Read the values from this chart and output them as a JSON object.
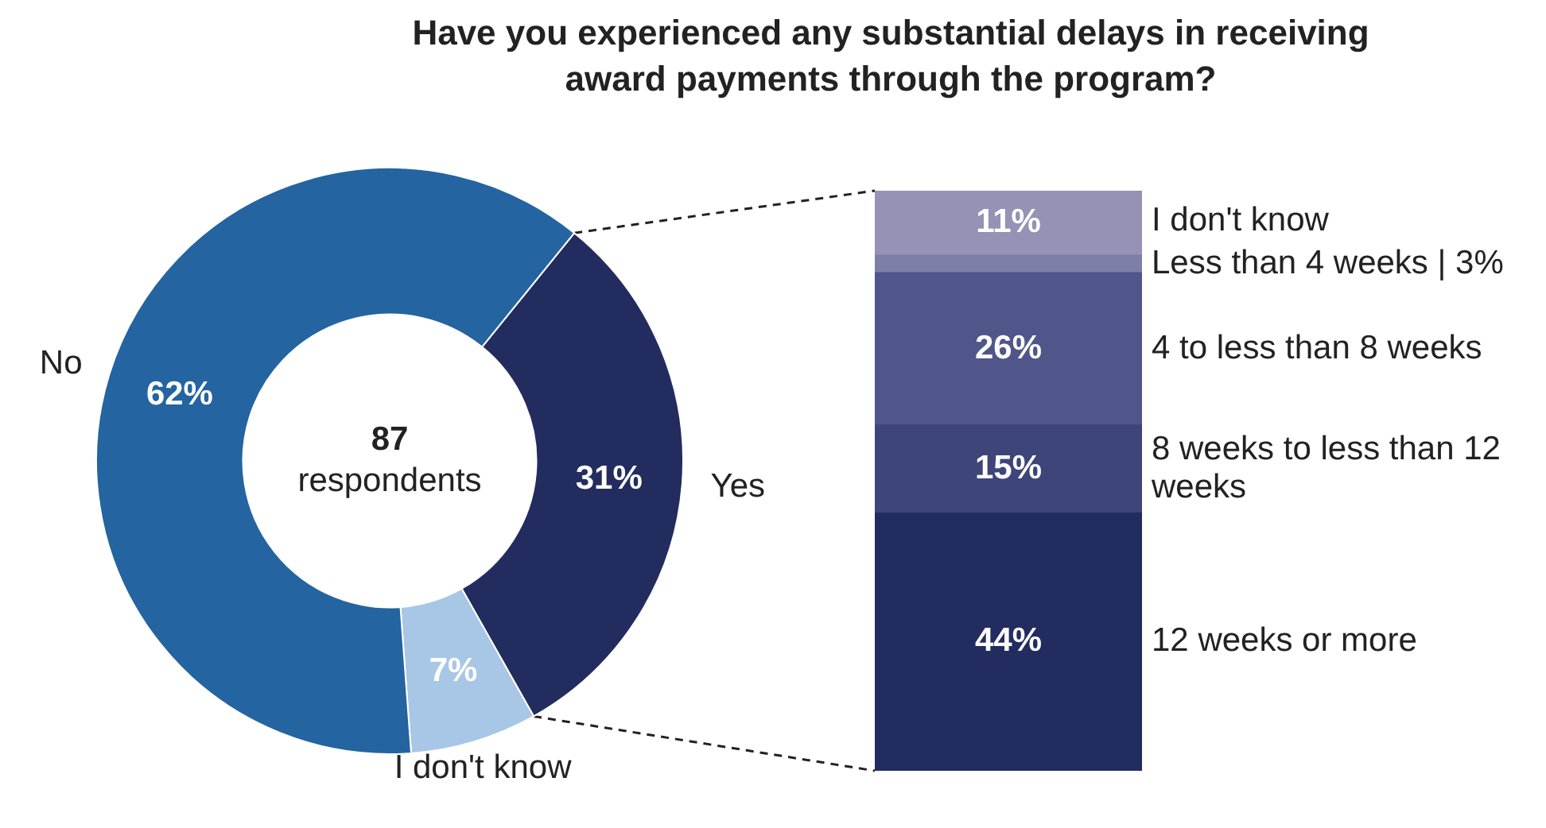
{
  "chart_data": [
    {
      "type": "donut",
      "title": "Have you experienced any substantial delays in receiving award payments through the program?",
      "categories": [
        "Yes",
        "I don't know",
        "No"
      ],
      "values": [
        31,
        7,
        62
      ],
      "colors": [
        "#232c5e",
        "#a8c7e6",
        "#2464a0"
      ],
      "value_labels": [
        "31%",
        "7%",
        "62%"
      ],
      "annotations": [
        "87",
        "respondents"
      ]
    },
    {
      "type": "bar",
      "stacked": true,
      "tick_labels": false,
      "categories": [
        null
      ],
      "series": [
        {
          "name": "12 weeks or more",
          "color": "#232c5e",
          "values": [
            44
          ],
          "value_labels": [
            "44%"
          ]
        },
        {
          "name": "8 weeks to less than 12 weeks",
          "color": "#3d4579",
          "values": [
            15
          ],
          "value_labels": [
            "15%"
          ]
        },
        {
          "name": "4 to less than 8 weeks",
          "color": "#50568a",
          "values": [
            26
          ],
          "value_labels": [
            "26%"
          ]
        },
        {
          "name": "Less than 4 weeks | 3%",
          "color": "#7d7fa8",
          "values": [
            3
          ]
        },
        {
          "name": "I don't know",
          "color": "#9592b5",
          "values": [
            11
          ],
          "value_labels": [
            "11%"
          ]
        }
      ]
    }
  ]
}
